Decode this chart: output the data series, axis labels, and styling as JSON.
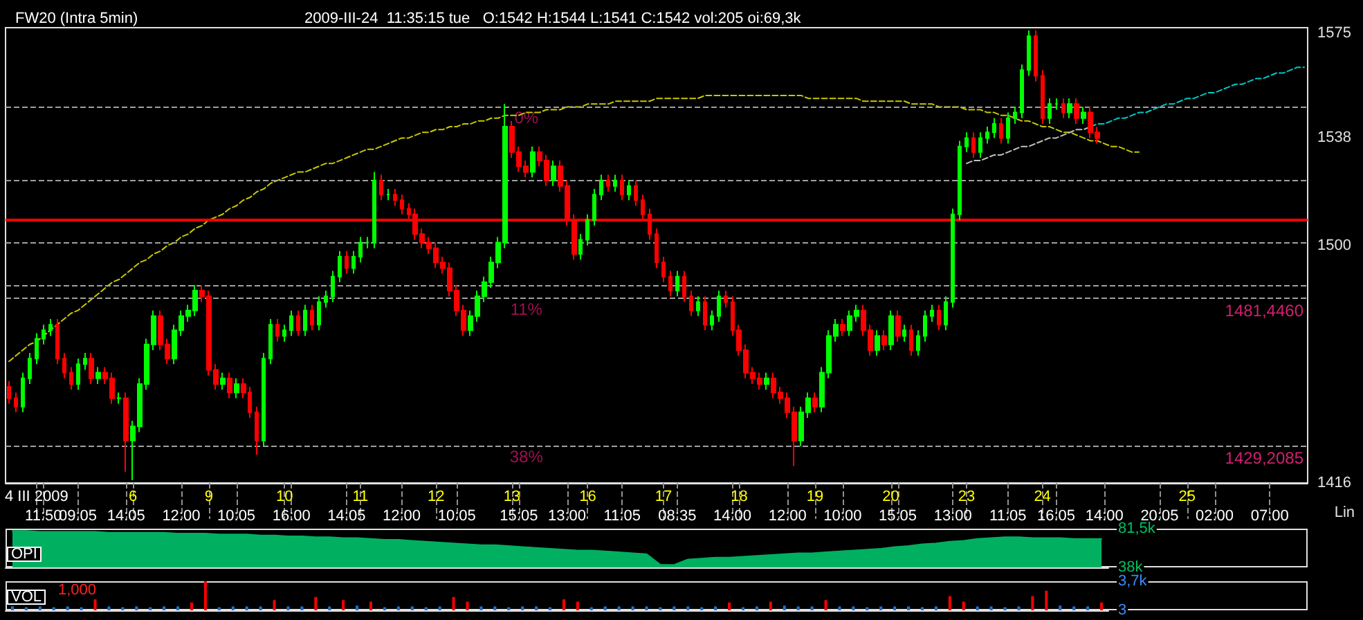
{
  "chart_data": [
    {
      "type": "candlestick",
      "title": "FW20 (Intra 5min)",
      "subtitle": "2009-III-24  11:35:15 tue   O:1542 H:1544 L:1541 C:1542 vol:205 oi:69,3k",
      "categories": [
        null,
        null,
        null,
        null,
        "4 III 2009",
        "11:50",
        null,
        null,
        null,
        null,
        "09:05",
        null,
        null,
        null,
        null,
        null,
        null,
        "14:05",
        "6",
        null,
        null,
        null,
        null,
        null,
        null,
        "12:00",
        null,
        null,
        null,
        "9",
        null,
        null,
        null,
        "10:05",
        null,
        null,
        null,
        null,
        null,
        null,
        "10",
        "16:00",
        null,
        null,
        null,
        null,
        null,
        null,
        null,
        "14:05",
        null,
        "11",
        null,
        null,
        null,
        null,
        null,
        "12:00",
        null,
        null,
        null,
        null,
        "12",
        null,
        null,
        "10:05",
        null,
        null,
        null,
        null,
        null,
        null,
        null,
        "13",
        "15:05",
        null,
        null,
        null,
        null,
        null,
        null,
        "13:00",
        null,
        null,
        "16",
        null,
        null,
        null,
        null,
        "11:05",
        null,
        null,
        null,
        null,
        null,
        "17",
        null,
        "08:35",
        null,
        null,
        null,
        null,
        null,
        null,
        null,
        "14:00",
        "18",
        null,
        null,
        null,
        null,
        null,
        null,
        "12:00",
        null,
        null,
        null,
        "19",
        null,
        null,
        null,
        "10:00",
        null,
        null,
        null,
        null,
        null,
        null,
        "20",
        "15:05",
        null,
        null,
        null,
        null,
        null,
        null,
        null,
        "13:00",
        null,
        "23",
        null,
        null,
        null,
        null,
        null,
        "11:05",
        null,
        null,
        null,
        null,
        "24",
        null,
        "16:05",
        null,
        null,
        null,
        null,
        null,
        null,
        "14:00",
        null,
        null,
        null,
        null,
        null,
        null,
        null,
        "20:05",
        null,
        null,
        null,
        "25",
        null,
        null,
        null,
        "02:00",
        null,
        null,
        null,
        null,
        null,
        null,
        null,
        "07:00",
        null,
        null,
        null,
        null,
        null
      ],
      "ohlc": [
        [
          1450,
          1452,
          1444,
          1446
        ],
        [
          1446,
          1448,
          1441,
          1443
        ],
        [
          1443,
          1455,
          1441,
          1453
        ],
        [
          1453,
          1462,
          1451,
          1460
        ],
        [
          1460,
          1469,
          1458,
          1467
        ],
        [
          1467,
          1472,
          1465,
          1470
        ],
        [
          1470,
          1474,
          1468,
          1472
        ],
        [
          1472,
          1474,
          1458,
          1460
        ],
        [
          1460,
          1462,
          1453,
          1455
        ],
        [
          1455,
          1457,
          1449,
          1451
        ],
        [
          1451,
          1460,
          1449,
          1458
        ],
        [
          1458,
          1462,
          1456,
          1460
        ],
        [
          1460,
          1462,
          1451,
          1453
        ],
        [
          1453,
          1457,
          1451,
          1455
        ],
        [
          1455,
          1457,
          1451,
          1453
        ],
        [
          1453,
          1455,
          1444,
          1446
        ],
        [
          1446,
          1448,
          1444,
          1446
        ],
        [
          1446,
          1448,
          1420,
          1431
        ],
        [
          1431,
          1438,
          1417,
          1436
        ],
        [
          1436,
          1453,
          1434,
          1451
        ],
        [
          1451,
          1467,
          1449,
          1465
        ],
        [
          1465,
          1477,
          1463,
          1475
        ],
        [
          1475,
          1477,
          1463,
          1465
        ],
        [
          1465,
          1467,
          1458,
          1460
        ],
        [
          1460,
          1472,
          1458,
          1470
        ],
        [
          1470,
          1477,
          1468,
          1475
        ],
        [
          1475,
          1479,
          1473,
          1477
        ],
        [
          1477,
          1486,
          1475,
          1484
        ],
        [
          1484,
          1486,
          1480,
          1482
        ],
        [
          1482,
          1484,
          1454,
          1456
        ],
        [
          1456,
          1458,
          1449,
          1451
        ],
        [
          1451,
          1455,
          1449,
          1453
        ],
        [
          1453,
          1455,
          1446,
          1448
        ],
        [
          1448,
          1453,
          1446,
          1451
        ],
        [
          1451,
          1453,
          1446,
          1448
        ],
        [
          1448,
          1450,
          1439,
          1441
        ],
        [
          1441,
          1443,
          1426,
          1431
        ],
        [
          1431,
          1462,
          1429,
          1460
        ],
        [
          1460,
          1474,
          1458,
          1472
        ],
        [
          1472,
          1474,
          1466,
          1468
        ],
        [
          1468,
          1472,
          1466,
          1470
        ],
        [
          1470,
          1477,
          1468,
          1475
        ],
        [
          1475,
          1477,
          1468,
          1470
        ],
        [
          1470,
          1479,
          1468,
          1477
        ],
        [
          1477,
          1479,
          1470,
          1472
        ],
        [
          1472,
          1482,
          1470,
          1480
        ],
        [
          1480,
          1484,
          1478,
          1482
        ],
        [
          1482,
          1491,
          1480,
          1489
        ],
        [
          1489,
          1498,
          1487,
          1496
        ],
        [
          1496,
          1498,
          1490,
          1492
        ],
        [
          1492,
          1498,
          1490,
          1496
        ],
        [
          1496,
          1503,
          1494,
          1501
        ],
        [
          1501,
          1503,
          1499,
          1501
        ],
        [
          1501,
          1526,
          1499,
          1523
        ],
        [
          1523,
          1525,
          1516,
          1518
        ],
        [
          1518,
          1520,
          1516,
          1518
        ],
        [
          1518,
          1520,
          1514,
          1516
        ],
        [
          1516,
          1518,
          1511,
          1513
        ],
        [
          1513,
          1515,
          1509,
          1511
        ],
        [
          1511,
          1513,
          1502,
          1504
        ],
        [
          1504,
          1506,
          1499,
          1501
        ],
        [
          1501,
          1503,
          1497,
          1499
        ],
        [
          1499,
          1501,
          1492,
          1494
        ],
        [
          1494,
          1496,
          1490,
          1492
        ],
        [
          1492,
          1494,
          1482,
          1484
        ],
        [
          1484,
          1486,
          1475,
          1477
        ],
        [
          1477,
          1479,
          1468,
          1470
        ],
        [
          1470,
          1477,
          1468,
          1475
        ],
        [
          1475,
          1484,
          1473,
          1482
        ],
        [
          1482,
          1489,
          1480,
          1487
        ],
        [
          1487,
          1496,
          1485,
          1494
        ],
        [
          1494,
          1503,
          1492,
          1501
        ],
        [
          1501,
          1550,
          1499,
          1542
        ],
        [
          1542,
          1544,
          1531,
          1533
        ],
        [
          1533,
          1535,
          1526,
          1528
        ],
        [
          1528,
          1530,
          1524,
          1526
        ],
        [
          1526,
          1535,
          1524,
          1533
        ],
        [
          1533,
          1535,
          1528,
          1530
        ],
        [
          1530,
          1532,
          1521,
          1523
        ],
        [
          1523,
          1530,
          1521,
          1528
        ],
        [
          1528,
          1530,
          1519,
          1521
        ],
        [
          1521,
          1523,
          1507,
          1509
        ],
        [
          1509,
          1511,
          1495,
          1497
        ],
        [
          1497,
          1504,
          1495,
          1502
        ],
        [
          1502,
          1511,
          1500,
          1509
        ],
        [
          1509,
          1520,
          1507,
          1518
        ],
        [
          1518,
          1525,
          1516,
          1523
        ],
        [
          1523,
          1525,
          1519,
          1521
        ],
        [
          1521,
          1525,
          1519,
          1523
        ],
        [
          1523,
          1525,
          1516,
          1518
        ],
        [
          1518,
          1523,
          1516,
          1521
        ],
        [
          1521,
          1523,
          1514,
          1516
        ],
        [
          1516,
          1518,
          1509,
          1511
        ],
        [
          1511,
          1513,
          1502,
          1504
        ],
        [
          1504,
          1506,
          1492,
          1494
        ],
        [
          1494,
          1496,
          1487,
          1489
        ],
        [
          1489,
          1491,
          1482,
          1484
        ],
        [
          1484,
          1491,
          1482,
          1489
        ],
        [
          1489,
          1491,
          1480,
          1482
        ],
        [
          1482,
          1484,
          1475,
          1477
        ],
        [
          1477,
          1482,
          1475,
          1480
        ],
        [
          1480,
          1482,
          1470,
          1472
        ],
        [
          1472,
          1477,
          1470,
          1475
        ],
        [
          1475,
          1484,
          1473,
          1482
        ],
        [
          1482,
          1484,
          1478,
          1480
        ],
        [
          1480,
          1482,
          1468,
          1470
        ],
        [
          1470,
          1472,
          1461,
          1463
        ],
        [
          1463,
          1465,
          1453,
          1455
        ],
        [
          1455,
          1457,
          1451,
          1453
        ],
        [
          1453,
          1455,
          1449,
          1451
        ],
        [
          1451,
          1455,
          1449,
          1453
        ],
        [
          1453,
          1455,
          1446,
          1448
        ],
        [
          1448,
          1450,
          1444,
          1446
        ],
        [
          1446,
          1448,
          1439,
          1441
        ],
        [
          1441,
          1443,
          1422,
          1431
        ],
        [
          1431,
          1443,
          1429,
          1441
        ],
        [
          1441,
          1448,
          1439,
          1446
        ],
        [
          1446,
          1448,
          1441,
          1443
        ],
        [
          1443,
          1457,
          1441,
          1455
        ],
        [
          1455,
          1470,
          1453,
          1468
        ],
        [
          1468,
          1474,
          1466,
          1472
        ],
        [
          1472,
          1474,
          1468,
          1470
        ],
        [
          1470,
          1477,
          1468,
          1475
        ],
        [
          1475,
          1479,
          1473,
          1477
        ],
        [
          1477,
          1479,
          1468,
          1470
        ],
        [
          1470,
          1472,
          1461,
          1463
        ],
        [
          1463,
          1470,
          1461,
          1468
        ],
        [
          1468,
          1470,
          1463,
          1465
        ],
        [
          1465,
          1477,
          1463,
          1475
        ],
        [
          1475,
          1477,
          1466,
          1468
        ],
        [
          1468,
          1472,
          1466,
          1470
        ],
        [
          1470,
          1472,
          1461,
          1463
        ],
        [
          1463,
          1470,
          1461,
          1468
        ],
        [
          1468,
          1477,
          1466,
          1475
        ],
        [
          1475,
          1479,
          1473,
          1477
        ],
        [
          1477,
          1479,
          1470,
          1472
        ],
        [
          1472,
          1482,
          1470,
          1480
        ],
        [
          1480,
          1513,
          1478,
          1511
        ],
        [
          1511,
          1537,
          1509,
          1535
        ],
        [
          1535,
          1540,
          1533,
          1538
        ],
        [
          1538,
          1540,
          1531,
          1533
        ],
        [
          1533,
          1540,
          1531,
          1538
        ],
        [
          1538,
          1542,
          1536,
          1540
        ],
        [
          1540,
          1545,
          1538,
          1543
        ],
        [
          1543,
          1545,
          1536,
          1538
        ],
        [
          1538,
          1547,
          1536,
          1545
        ],
        [
          1545,
          1549,
          1543,
          1547
        ],
        [
          1547,
          1564,
          1545,
          1562
        ],
        [
          1562,
          1576,
          1560,
          1574
        ],
        [
          1574,
          1576,
          1558,
          1560
        ],
        [
          1560,
          1562,
          1543,
          1545
        ],
        [
          1545,
          1552,
          1543,
          1550
        ],
        [
          1550,
          1552,
          1548,
          1550
        ],
        [
          1550,
          1552,
          1545,
          1547
        ],
        [
          1547,
          1552,
          1545,
          1550
        ],
        [
          1550,
          1552,
          1543,
          1545
        ],
        [
          1545,
          1549,
          1543,
          1547
        ],
        [
          1547,
          1549,
          1538,
          1540
        ],
        [
          1540,
          1542,
          1536,
          1538
        ],
        null,
        null,
        null,
        null,
        null,
        null,
        null,
        null,
        null,
        null,
        null,
        null,
        null,
        null,
        null,
        null,
        null,
        null,
        null,
        null,
        null,
        null,
        null,
        null,
        null,
        null,
        null,
        null,
        null,
        null
      ],
      "colors": [
        "#ff0000",
        "#ff0000",
        "#00ff00",
        "#00ff00",
        "#00ff00",
        "#00ff00",
        "#00ff00",
        "#ff0000",
        "#ff0000",
        "#ff0000",
        "#00ff00",
        "#00ff00",
        "#ff0000",
        "#00ff00",
        "#ff0000",
        "#ff0000",
        "#00ff00",
        "#ff0000",
        "#00ff00",
        "#00ff00",
        "#00ff00",
        "#00ff00",
        "#ff0000",
        "#ff0000",
        "#00ff00",
        "#00ff00",
        "#00ff00",
        "#00ff00",
        "#ff0000",
        "#ff0000",
        "#ff0000",
        "#00ff00",
        "#ff0000",
        "#00ff00",
        "#ff0000",
        "#ff0000",
        "#ff0000",
        "#00ff00",
        "#00ff00",
        "#ff0000",
        "#00ff00",
        "#00ff00",
        "#ff0000",
        "#00ff00",
        "#ff0000",
        "#00ff00",
        "#00ff00",
        "#00ff00",
        "#00ff00",
        "#ff0000",
        "#00ff00",
        "#00ff00",
        "#00ff00",
        "#00ff00",
        "#ff0000",
        "#00ff00",
        "#ff0000",
        "#ff0000",
        "#ff0000",
        "#ff0000",
        "#ff0000",
        "#ff0000",
        "#ff0000",
        "#ff0000",
        "#ff0000",
        "#ff0000",
        "#ff0000",
        "#00ff00",
        "#00ff00",
        "#00ff00",
        "#00ff00",
        "#00ff00",
        "#00ff00",
        "#ff0000",
        "#ff0000",
        "#ff0000",
        "#00ff00",
        "#ff0000",
        "#ff0000",
        "#00ff00",
        "#ff0000",
        "#ff0000",
        "#ff0000",
        "#00ff00",
        "#00ff00",
        "#00ff00",
        "#00ff00",
        "#ff0000",
        "#00ff00",
        "#ff0000",
        "#00ff00",
        "#ff0000",
        "#ff0000",
        "#ff0000",
        "#ff0000",
        "#ff0000",
        "#ff0000",
        "#00ff00",
        "#ff0000",
        "#ff0000",
        "#00ff00",
        "#ff0000",
        "#00ff00",
        "#00ff00",
        "#ff0000",
        "#ff0000",
        "#ff0000",
        "#ff0000",
        "#ff0000",
        "#ff0000",
        "#00ff00",
        "#ff0000",
        "#ff0000",
        "#ff0000",
        "#ff0000",
        "#00ff00",
        "#00ff00",
        "#ff0000",
        "#00ff00",
        "#00ff00",
        "#00ff00",
        "#ff0000",
        "#00ff00",
        "#00ff00",
        "#ff0000",
        "#ff0000",
        "#00ff00",
        "#ff0000",
        "#00ff00",
        "#ff0000",
        "#00ff00",
        "#ff0000",
        "#00ff00",
        "#00ff00",
        "#00ff00",
        "#ff0000",
        "#00ff00",
        "#00ff00",
        "#00ff00",
        "#00ff00",
        "#ff0000",
        "#00ff00",
        "#00ff00",
        "#00ff00",
        "#ff0000",
        "#00ff00",
        "#00ff00",
        "#00ff00",
        "#00ff00",
        "#ff0000",
        "#ff0000",
        "#00ff00",
        "#00ff00",
        "#ff0000",
        "#00ff00",
        "#ff0000",
        "#00ff00",
        "#ff0000",
        "#ff0000",
        null,
        null,
        null,
        null,
        null,
        null,
        null,
        null,
        null,
        null,
        null,
        null,
        null,
        null,
        null,
        null,
        null,
        null,
        null,
        null,
        null,
        null,
        null,
        null,
        null,
        null,
        null,
        null,
        null,
        null
      ],
      "series": [
        {
          "type": "line",
          "color": "#c8c800",
          "line_style": "dashed",
          "values": [
            1459,
            1461,
            1463,
            1465,
            1466,
            1468,
            1470,
            1472,
            1474,
            1476,
            1477,
            1479,
            1481,
            1483,
            1485,
            1487,
            1488,
            1490,
            1492,
            1494,
            1495,
            1497,
            1498,
            1500,
            1501,
            1503,
            1504,
            1506,
            1507,
            1509,
            1510,
            1511,
            1513,
            1514,
            1516,
            1517,
            1519,
            1520,
            1522,
            1523,
            1524,
            1525,
            1526,
            1526,
            1527,
            1528,
            1529,
            1529,
            1530,
            1531,
            1532,
            1533,
            1534,
            1534,
            1535,
            1536,
            1537,
            1538,
            1538,
            1539,
            1540,
            1540,
            1541,
            1541,
            1542,
            1542,
            1543,
            1543,
            1544,
            1544,
            1545,
            1545,
            1546,
            1546,
            1546,
            1547,
            1547,
            1547,
            1548,
            1548,
            1548,
            1549,
            1549,
            1549,
            1550,
            1550,
            1550,
            1550,
            1551,
            1551,
            1551,
            1551,
            1551,
            1551,
            1552,
            1552,
            1552,
            1552,
            1552,
            1552,
            1552,
            1553,
            1553,
            1553,
            1553,
            1553,
            1553,
            1553,
            1553,
            1553,
            1553,
            1553,
            1553,
            1553,
            1553,
            1553,
            1552,
            1552,
            1552,
            1552,
            1552,
            1552,
            1552,
            1552,
            1551,
            1551,
            1551,
            1551,
            1551,
            1551,
            1551,
            1550,
            1550,
            1550,
            1550,
            1549,
            1549,
            1549,
            1549,
            1548,
            1548,
            1548,
            1547,
            1547,
            1546,
            1546,
            1545,
            1544,
            1544,
            1543,
            1542,
            1542,
            1541,
            1540,
            1540,
            1539,
            1538,
            1537,
            1537,
            1536,
            1535,
            1535,
            1534,
            1533,
            1533,
            null,
            null,
            null,
            null,
            null,
            null,
            null,
            null,
            null,
            null,
            null,
            null,
            null,
            null,
            null,
            null,
            null,
            null,
            null,
            null,
            null,
            null,
            null,
            null
          ]
        },
        {
          "type": "line",
          "color": "#c0c0c0",
          "line_style": "dashed",
          "values": [
            null,
            null,
            null,
            null,
            null,
            null,
            null,
            null,
            null,
            null,
            null,
            null,
            null,
            null,
            null,
            null,
            null,
            null,
            null,
            null,
            null,
            null,
            null,
            null,
            null,
            null,
            null,
            null,
            null,
            null,
            null,
            null,
            null,
            null,
            null,
            null,
            null,
            null,
            null,
            null,
            null,
            null,
            null,
            null,
            null,
            null,
            null,
            null,
            null,
            null,
            null,
            null,
            null,
            null,
            null,
            null,
            null,
            null,
            null,
            null,
            null,
            null,
            null,
            null,
            null,
            null,
            null,
            null,
            null,
            null,
            null,
            null,
            null,
            null,
            null,
            null,
            null,
            null,
            null,
            null,
            null,
            null,
            null,
            null,
            null,
            null,
            null,
            null,
            null,
            null,
            null,
            null,
            null,
            null,
            null,
            null,
            null,
            null,
            null,
            null,
            null,
            null,
            null,
            null,
            null,
            null,
            null,
            null,
            null,
            null,
            null,
            null,
            null,
            null,
            null,
            null,
            null,
            null,
            null,
            null,
            null,
            null,
            null,
            null,
            null,
            null,
            null,
            null,
            null,
            null,
            null,
            null,
            null,
            null,
            null,
            null,
            null,
            null,
            null,
            1529,
            1530,
            1530,
            1531,
            1532,
            1532,
            1533,
            1534,
            1535,
            1535,
            1536,
            1537,
            1538,
            1538,
            1539,
            1540,
            1541,
            1541,
            1542,
            null,
            null,
            null,
            null,
            null,
            null,
            null,
            null,
            null,
            null,
            null,
            null,
            null,
            null,
            null,
            null,
            null,
            null,
            null,
            null,
            null,
            null,
            null,
            null,
            null,
            null,
            null,
            null,
            null,
            null,
            null
          ]
        },
        {
          "type": "line",
          "color": "#00c8c8",
          "line_style": "dashed",
          "values": [
            null,
            null,
            null,
            null,
            null,
            null,
            null,
            null,
            null,
            null,
            null,
            null,
            null,
            null,
            null,
            null,
            null,
            null,
            null,
            null,
            null,
            null,
            null,
            null,
            null,
            null,
            null,
            null,
            null,
            null,
            null,
            null,
            null,
            null,
            null,
            null,
            null,
            null,
            null,
            null,
            null,
            null,
            null,
            null,
            null,
            null,
            null,
            null,
            null,
            null,
            null,
            null,
            null,
            null,
            null,
            null,
            null,
            null,
            null,
            null,
            null,
            null,
            null,
            null,
            null,
            null,
            null,
            null,
            null,
            null,
            null,
            null,
            null,
            null,
            null,
            null,
            null,
            null,
            null,
            null,
            null,
            null,
            null,
            null,
            null,
            null,
            null,
            null,
            null,
            null,
            null,
            null,
            null,
            null,
            null,
            null,
            null,
            null,
            null,
            null,
            null,
            null,
            null,
            null,
            null,
            null,
            null,
            null,
            null,
            null,
            null,
            null,
            null,
            null,
            null,
            null,
            null,
            null,
            null,
            null,
            null,
            null,
            null,
            null,
            null,
            null,
            null,
            null,
            null,
            null,
            null,
            null,
            null,
            null,
            null,
            null,
            null,
            null,
            null,
            null,
            null,
            null,
            null,
            null,
            null,
            null,
            null,
            null,
            null,
            null,
            null,
            null,
            null,
            null,
            null,
            null,
            null,
            1542,
            1543,
            1543,
            1544,
            1545,
            1545,
            1546,
            1547,
            1547,
            1548,
            1549,
            1550,
            1550,
            1551,
            1552,
            1552,
            1553,
            1554,
            1554,
            1555,
            1556,
            1557,
            1557,
            1558,
            1559,
            1559,
            1560,
            1561,
            1561,
            1562,
            1563,
            1563
          ]
        }
      ],
      "ref_lines": [
        {
          "axis": "y",
          "value": 1549,
          "color": "#a0a0a0",
          "line_style": "dashed"
        },
        {
          "axis": "y",
          "value": 1523,
          "color": "#a0a0a0",
          "line_style": "dashed"
        },
        {
          "axis": "y",
          "value": 1509,
          "color": "#ff0000",
          "line_style": "solid"
        },
        {
          "axis": "y",
          "value": 1501,
          "color": "#a0a0a0",
          "line_style": "dashed"
        },
        {
          "axis": "y",
          "value": 1486,
          "color": "#a0a0a0",
          "line_style": "dashed"
        },
        {
          "axis": "y",
          "value": 1481.4,
          "label": "1481,4460",
          "color": "#a0a0a0",
          "line_style": "dashed"
        },
        {
          "axis": "y",
          "value": 1429.2,
          "label": "1429,2085",
          "color": "#a0a0a0",
          "line_style": "dashed"
        }
      ],
      "annotations": [
        "Lin",
        {
          "text": "0%",
          "y": 1549
        },
        {
          "text": "11%",
          "y": 1481.4
        },
        {
          "text": "38%",
          "y": 1429.2
        }
      ],
      "ylim": [
        1416,
        1577
      ],
      "yticks": [
        1416,
        1500,
        1538,
        1575
      ]
    },
    {
      "type": "area",
      "ylabel": "OPI",
      "color": "#00b060",
      "categories": [
        null,
        null,
        null,
        null,
        null,
        null,
        null,
        null,
        null,
        null,
        null,
        null,
        null,
        null,
        null,
        null,
        null,
        null,
        null,
        null,
        null,
        null,
        null,
        null,
        null,
        null,
        null,
        null,
        null,
        null,
        null,
        null,
        null,
        null,
        null,
        null,
        null,
        null,
        null,
        null,
        null,
        null,
        null,
        null,
        null,
        null,
        null,
        null,
        null,
        null,
        null,
        null,
        null,
        null,
        null,
        null,
        null,
        null,
        null,
        null,
        null,
        null,
        null,
        null,
        null,
        null,
        null,
        null,
        null,
        null,
        null,
        null,
        null,
        null,
        null,
        null,
        null,
        null,
        null,
        null
      ],
      "values": [
        79000,
        79000,
        78000,
        78000,
        78000,
        78000,
        78000,
        77000,
        77000,
        77000,
        77000,
        77000,
        76000,
        76000,
        76000,
        75000,
        75000,
        75000,
        74000,
        74000,
        73000,
        73000,
        72000,
        72000,
        71000,
        71000,
        70000,
        69000,
        69000,
        68000,
        67000,
        66000,
        65000,
        64000,
        63000,
        63000,
        62000,
        61000,
        60000,
        59000,
        58000,
        57000,
        57000,
        56000,
        55000,
        54000,
        53000,
        41000,
        41000,
        47000,
        48000,
        49000,
        49000,
        50000,
        51000,
        52000,
        53000,
        54000,
        54000,
        55000,
        56000,
        57000,
        58000,
        59000,
        61000,
        62000,
        64000,
        65000,
        67000,
        68000,
        70000,
        71000,
        72000,
        72000,
        71000,
        71000,
        71000,
        70000,
        70000,
        70000
      ],
      "ylim": [
        38000,
        81500
      ],
      "yticks": [
        {
          "value": 38000,
          "label": "38k"
        },
        {
          "value": 81500,
          "label": "81,5k"
        }
      ],
      "tick_labels": "y"
    },
    {
      "type": "bar",
      "ylabel": "VOL",
      "annotations": [
        "1,000"
      ],
      "categories": [
        null,
        null,
        null,
        null,
        null,
        null,
        null,
        null,
        null,
        null,
        null,
        null,
        null,
        null,
        null,
        null,
        null,
        null,
        null,
        null,
        null,
        null,
        null,
        null,
        null,
        null,
        null,
        null,
        null,
        null,
        null,
        null,
        null,
        null,
        null,
        null,
        null,
        null,
        null,
        null,
        null,
        null,
        null,
        null,
        null,
        null,
        null,
        null,
        null,
        null,
        null,
        null,
        null,
        null,
        null,
        null,
        null,
        null,
        null,
        null,
        null,
        null,
        null,
        null,
        null,
        null,
        null,
        null,
        null,
        null,
        null,
        null,
        null,
        null,
        null,
        null,
        null,
        null,
        null,
        null
      ],
      "ylim": [
        3,
        3700
      ],
      "yticks": [
        3,
        {
          "value": 3700,
          "label": "3,7k"
        }
      ],
      "tick_labels": "y",
      "values": [
        500,
        400,
        500,
        400,
        500,
        400,
        1400,
        500,
        400,
        500,
        400,
        500,
        500,
        1000,
        3700,
        400,
        500,
        500,
        500,
        1300,
        500,
        500,
        1700,
        500,
        1300,
        600,
        1100,
        400,
        500,
        500,
        400,
        500,
        1700,
        1100,
        500,
        500,
        400,
        500,
        500,
        400,
        1400,
        1100,
        400,
        500,
        500,
        500,
        500,
        400,
        500,
        500,
        400,
        500,
        1000,
        400,
        500,
        1100,
        600,
        500,
        500,
        1300,
        500,
        500,
        400,
        500,
        500,
        500,
        400,
        500,
        1800,
        1100,
        500,
        500,
        400,
        500,
        1800,
        2500,
        600,
        500,
        500,
        1000
      ],
      "colors": [
        "#2070d0",
        "#2070d0",
        "#2070d0",
        "#2070d0",
        "#2070d0",
        "#2070d0",
        "#ff0000",
        "#2070d0",
        "#2070d0",
        "#2070d0",
        "#2070d0",
        "#2070d0",
        "#2070d0",
        "#ff0000",
        "#ff0000",
        "#2070d0",
        "#2070d0",
        "#2070d0",
        "#2070d0",
        "#ff0000",
        "#2070d0",
        "#2070d0",
        "#ff0000",
        "#2070d0",
        "#ff0000",
        "#2070d0",
        "#ff0000",
        "#2070d0",
        "#2070d0",
        "#2070d0",
        "#2070d0",
        "#2070d0",
        "#ff0000",
        "#ff0000",
        "#2070d0",
        "#2070d0",
        "#2070d0",
        "#2070d0",
        "#2070d0",
        "#2070d0",
        "#ff0000",
        "#ff0000",
        "#2070d0",
        "#2070d0",
        "#2070d0",
        "#2070d0",
        "#2070d0",
        "#2070d0",
        "#2070d0",
        "#2070d0",
        "#2070d0",
        "#2070d0",
        "#ff0000",
        "#2070d0",
        "#2070d0",
        "#ff0000",
        "#2070d0",
        "#2070d0",
        "#2070d0",
        "#ff0000",
        "#2070d0",
        "#2070d0",
        "#2070d0",
        "#2070d0",
        "#2070d0",
        "#2070d0",
        "#2070d0",
        "#2070d0",
        "#ff0000",
        "#ff0000",
        "#2070d0",
        "#2070d0",
        "#2070d0",
        "#2070d0",
        "#ff0000",
        "#ff0000",
        "#2070d0",
        "#2070d0",
        "#2070d0",
        "#ff0000"
      ]
    }
  ]
}
